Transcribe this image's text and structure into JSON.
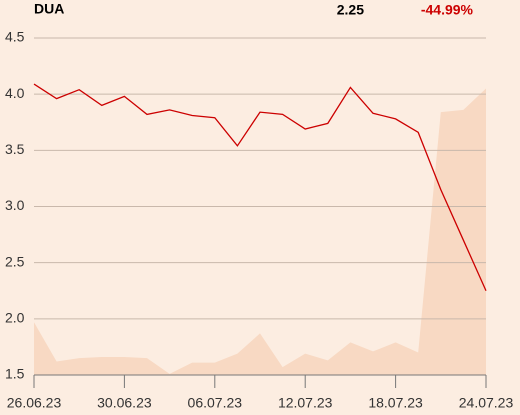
{
  "chart_data": {
    "type": "line",
    "title": "DUA",
    "price": "2.25",
    "change": "-44.99%",
    "categories": [
      "26.06.23",
      null,
      null,
      null,
      "30.06.23",
      null,
      null,
      null,
      "06.07.23",
      null,
      null,
      null,
      "12.07.23",
      null,
      null,
      null,
      "18.07.23",
      null,
      null,
      null,
      "24.07.23"
    ],
    "series": [
      {
        "color": "#cc0000",
        "values": [
          4.09,
          3.96,
          4.04,
          3.9,
          3.98,
          3.82,
          3.86,
          3.81,
          3.79,
          3.54,
          3.84,
          3.82,
          3.69,
          3.74,
          4.06,
          3.83,
          3.78,
          3.66,
          3.15,
          2.7,
          2.25
        ]
      },
      {
        "color": "#f8d9c3",
        "values": [
          1.97,
          1.62,
          1.65,
          1.66,
          1.66,
          1.65,
          1.51,
          1.61,
          1.61,
          1.69,
          1.87,
          1.57,
          1.69,
          1.63,
          1.79,
          1.71,
          1.79,
          1.7,
          3.84,
          3.86,
          4.05
        ]
      }
    ],
    "ylim": [
      1.5,
      4.5
    ],
    "yticks": [
      1.5,
      {
        "value": 2,
        "label": "2.0"
      },
      2.5,
      {
        "value": 3,
        "label": "3.0"
      },
      3.5,
      {
        "value": 4,
        "label": "4.0"
      },
      4.5
    ],
    "grid": true
  }
}
